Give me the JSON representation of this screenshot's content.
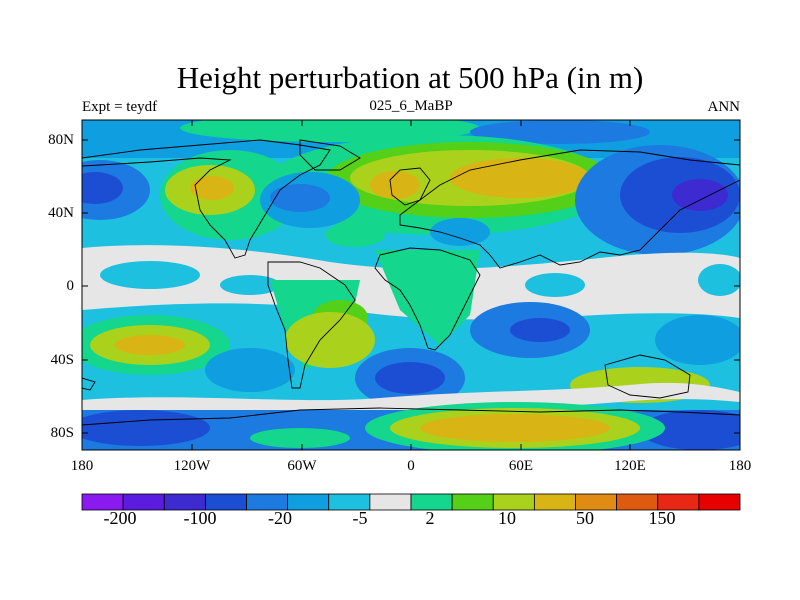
{
  "title": "Height perturbation at 500 hPa (in m)",
  "subtitle_left": "Expt = teydf",
  "subtitle_center": "025_6_MaBP",
  "subtitle_right": "ANN",
  "lat_labels": [
    "80N",
    "40N",
    "0",
    "40S",
    "80S"
  ],
  "lat_values": [
    80,
    40,
    0,
    -40,
    -80
  ],
  "lon_labels": [
    "180",
    "120W",
    "60W",
    "0",
    "60E",
    "120E",
    "180"
  ],
  "lon_values": [
    -180,
    -120,
    -60,
    0,
    60,
    120,
    180
  ],
  "colorbar": {
    "colors": [
      "#8a1af0",
      "#5c1ce0",
      "#3d2ad1",
      "#1c4ed4",
      "#1c7ae0",
      "#0f9ee0",
      "#1ec0e0",
      "#e6e6e6",
      "#14d68c",
      "#54d018",
      "#aad21c",
      "#d8b414",
      "#e08c14",
      "#de5a0e",
      "#e82814",
      "#e60000"
    ],
    "labels": [
      "-200",
      "-100",
      "-20",
      "-5",
      "2",
      "10",
      "50",
      "150"
    ]
  }
}
